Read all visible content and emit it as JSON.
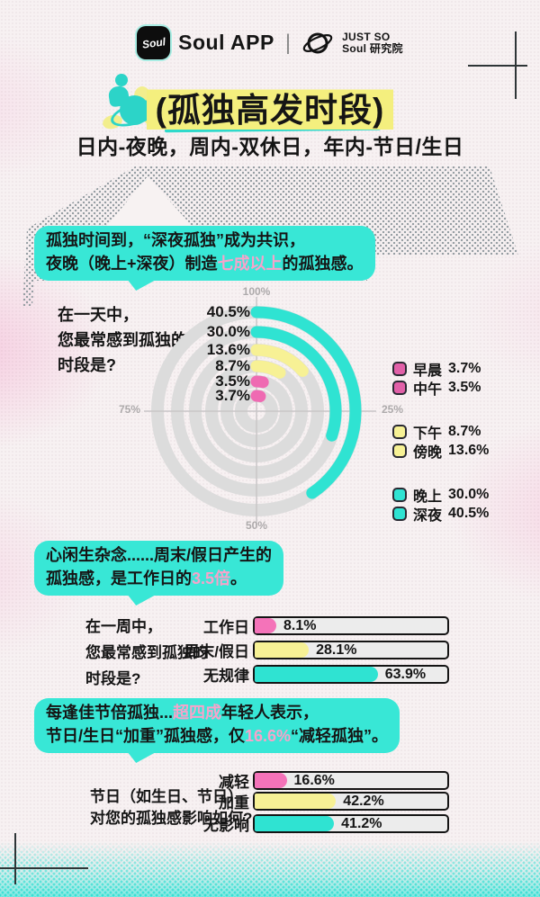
{
  "palette": {
    "teal": "#38E7D6",
    "teal_arc": "#2FE3D2",
    "pink": "#EF6AB2",
    "pink_text": "#F7A3CA",
    "yellow": "#F7F195",
    "highlight_yellow": "#F4EF7E",
    "legend_pink": "#E160A8",
    "track_gray": "#ECECEC",
    "ring_gray": "#DCDCDC"
  },
  "header": {
    "app_badge": "Soul",
    "app_name": "Soul APP",
    "divider": "|",
    "lab_line1": "JUST SO",
    "lab_line2": "Soul 研究院"
  },
  "title": {
    "text": "(孤独高发时段)",
    "subtitle": "日内-夜晚，周内-双休日，年内-节日/生日"
  },
  "bubbles": {
    "b1": {
      "line1": "孤独时间到，“深夜孤独”成为共识，",
      "line2_pre": "夜晚（晚上+深夜）制造",
      "line2_hl": "七成以上",
      "line2_post": "的孤独感。"
    },
    "b2": {
      "line1": "心闲生杂念......周末/假日产生的",
      "line2_pre": "孤独感，是工作日的",
      "line2_hl": "3.5倍",
      "line2_post": "。"
    },
    "b3": {
      "line1_pre": "每逢佳节倍孤独...",
      "line1_hl": "超四成",
      "line1_post": "年轻人表示，",
      "line2_pre": "节日/生日“加重”孤独感，仅",
      "line2_hl": "16.6%",
      "line2_post": "“减轻孤独”。"
    }
  },
  "chart_data": [
    {
      "type": "radial-bar",
      "question_lines": [
        "在一天中，",
        "您最常感到孤独的",
        "时段是?"
      ],
      "axis_ticks": {
        "top": "100%",
        "right": "25%",
        "bottom": "50%",
        "left": "75%"
      },
      "start": "top",
      "direction": "clockwise",
      "ylim": [
        0,
        100
      ],
      "series": [
        {
          "label": "深夜",
          "value": 40.5,
          "value_label": "40.5%",
          "color": "#2FE3D2"
        },
        {
          "label": "晚上",
          "value": 30.0,
          "value_label": "30.0%",
          "color": "#2FE3D2"
        },
        {
          "label": "傍晚",
          "value": 13.6,
          "value_label": "13.6%",
          "color": "#F7F195"
        },
        {
          "label": "下午",
          "value": 8.7,
          "value_label": "8.7%",
          "color": "#F7F195"
        },
        {
          "label": "中午",
          "value": 3.5,
          "value_label": "3.5%",
          "color": "#EF6AB2"
        },
        {
          "label": "早晨",
          "value": 3.7,
          "value_label": "3.7%",
          "color": "#EF6AB2"
        }
      ],
      "legend_groups": [
        {
          "items": [
            {
              "label": "早晨",
              "value_label": "3.7%",
              "color": "#E160A8"
            },
            {
              "label": "中午",
              "value_label": "3.5%",
              "color": "#E160A8"
            }
          ]
        },
        {
          "items": [
            {
              "label": "下午",
              "value_label": "8.7%",
              "color": "#F7F195"
            },
            {
              "label": "傍晚",
              "value_label": "13.6%",
              "color": "#F7F195"
            }
          ]
        },
        {
          "items": [
            {
              "label": "晚上",
              "value_label": "30.0%",
              "color": "#2FE3D2"
            },
            {
              "label": "深夜",
              "value_label": "40.5%",
              "color": "#2FE3D2"
            }
          ]
        }
      ]
    },
    {
      "type": "bar",
      "question_lines": [
        "在一周中，",
        "您最常感到孤独的",
        "时段是?"
      ],
      "categories": [
        "工作日",
        "周末/假日",
        "无规律"
      ],
      "values": [
        8.1,
        28.1,
        63.9
      ],
      "value_labels": [
        "8.1%",
        "28.1%",
        "63.9%"
      ],
      "colors": [
        "#F473B9",
        "#F7F195",
        "#2FE3D2"
      ],
      "xlim": [
        0,
        100
      ]
    },
    {
      "type": "bar",
      "question_lines": [
        "节日（如生日、节日）",
        "对您的孤独感影响如何?"
      ],
      "categories": [
        "减轻",
        "加重",
        "无影响"
      ],
      "values": [
        16.6,
        42.2,
        41.2
      ],
      "value_labels": [
        "16.6%",
        "42.2%",
        "41.2%"
      ],
      "colors": [
        "#F473B9",
        "#F7F195",
        "#2FE3D2"
      ],
      "xlim": [
        0,
        100
      ]
    }
  ]
}
